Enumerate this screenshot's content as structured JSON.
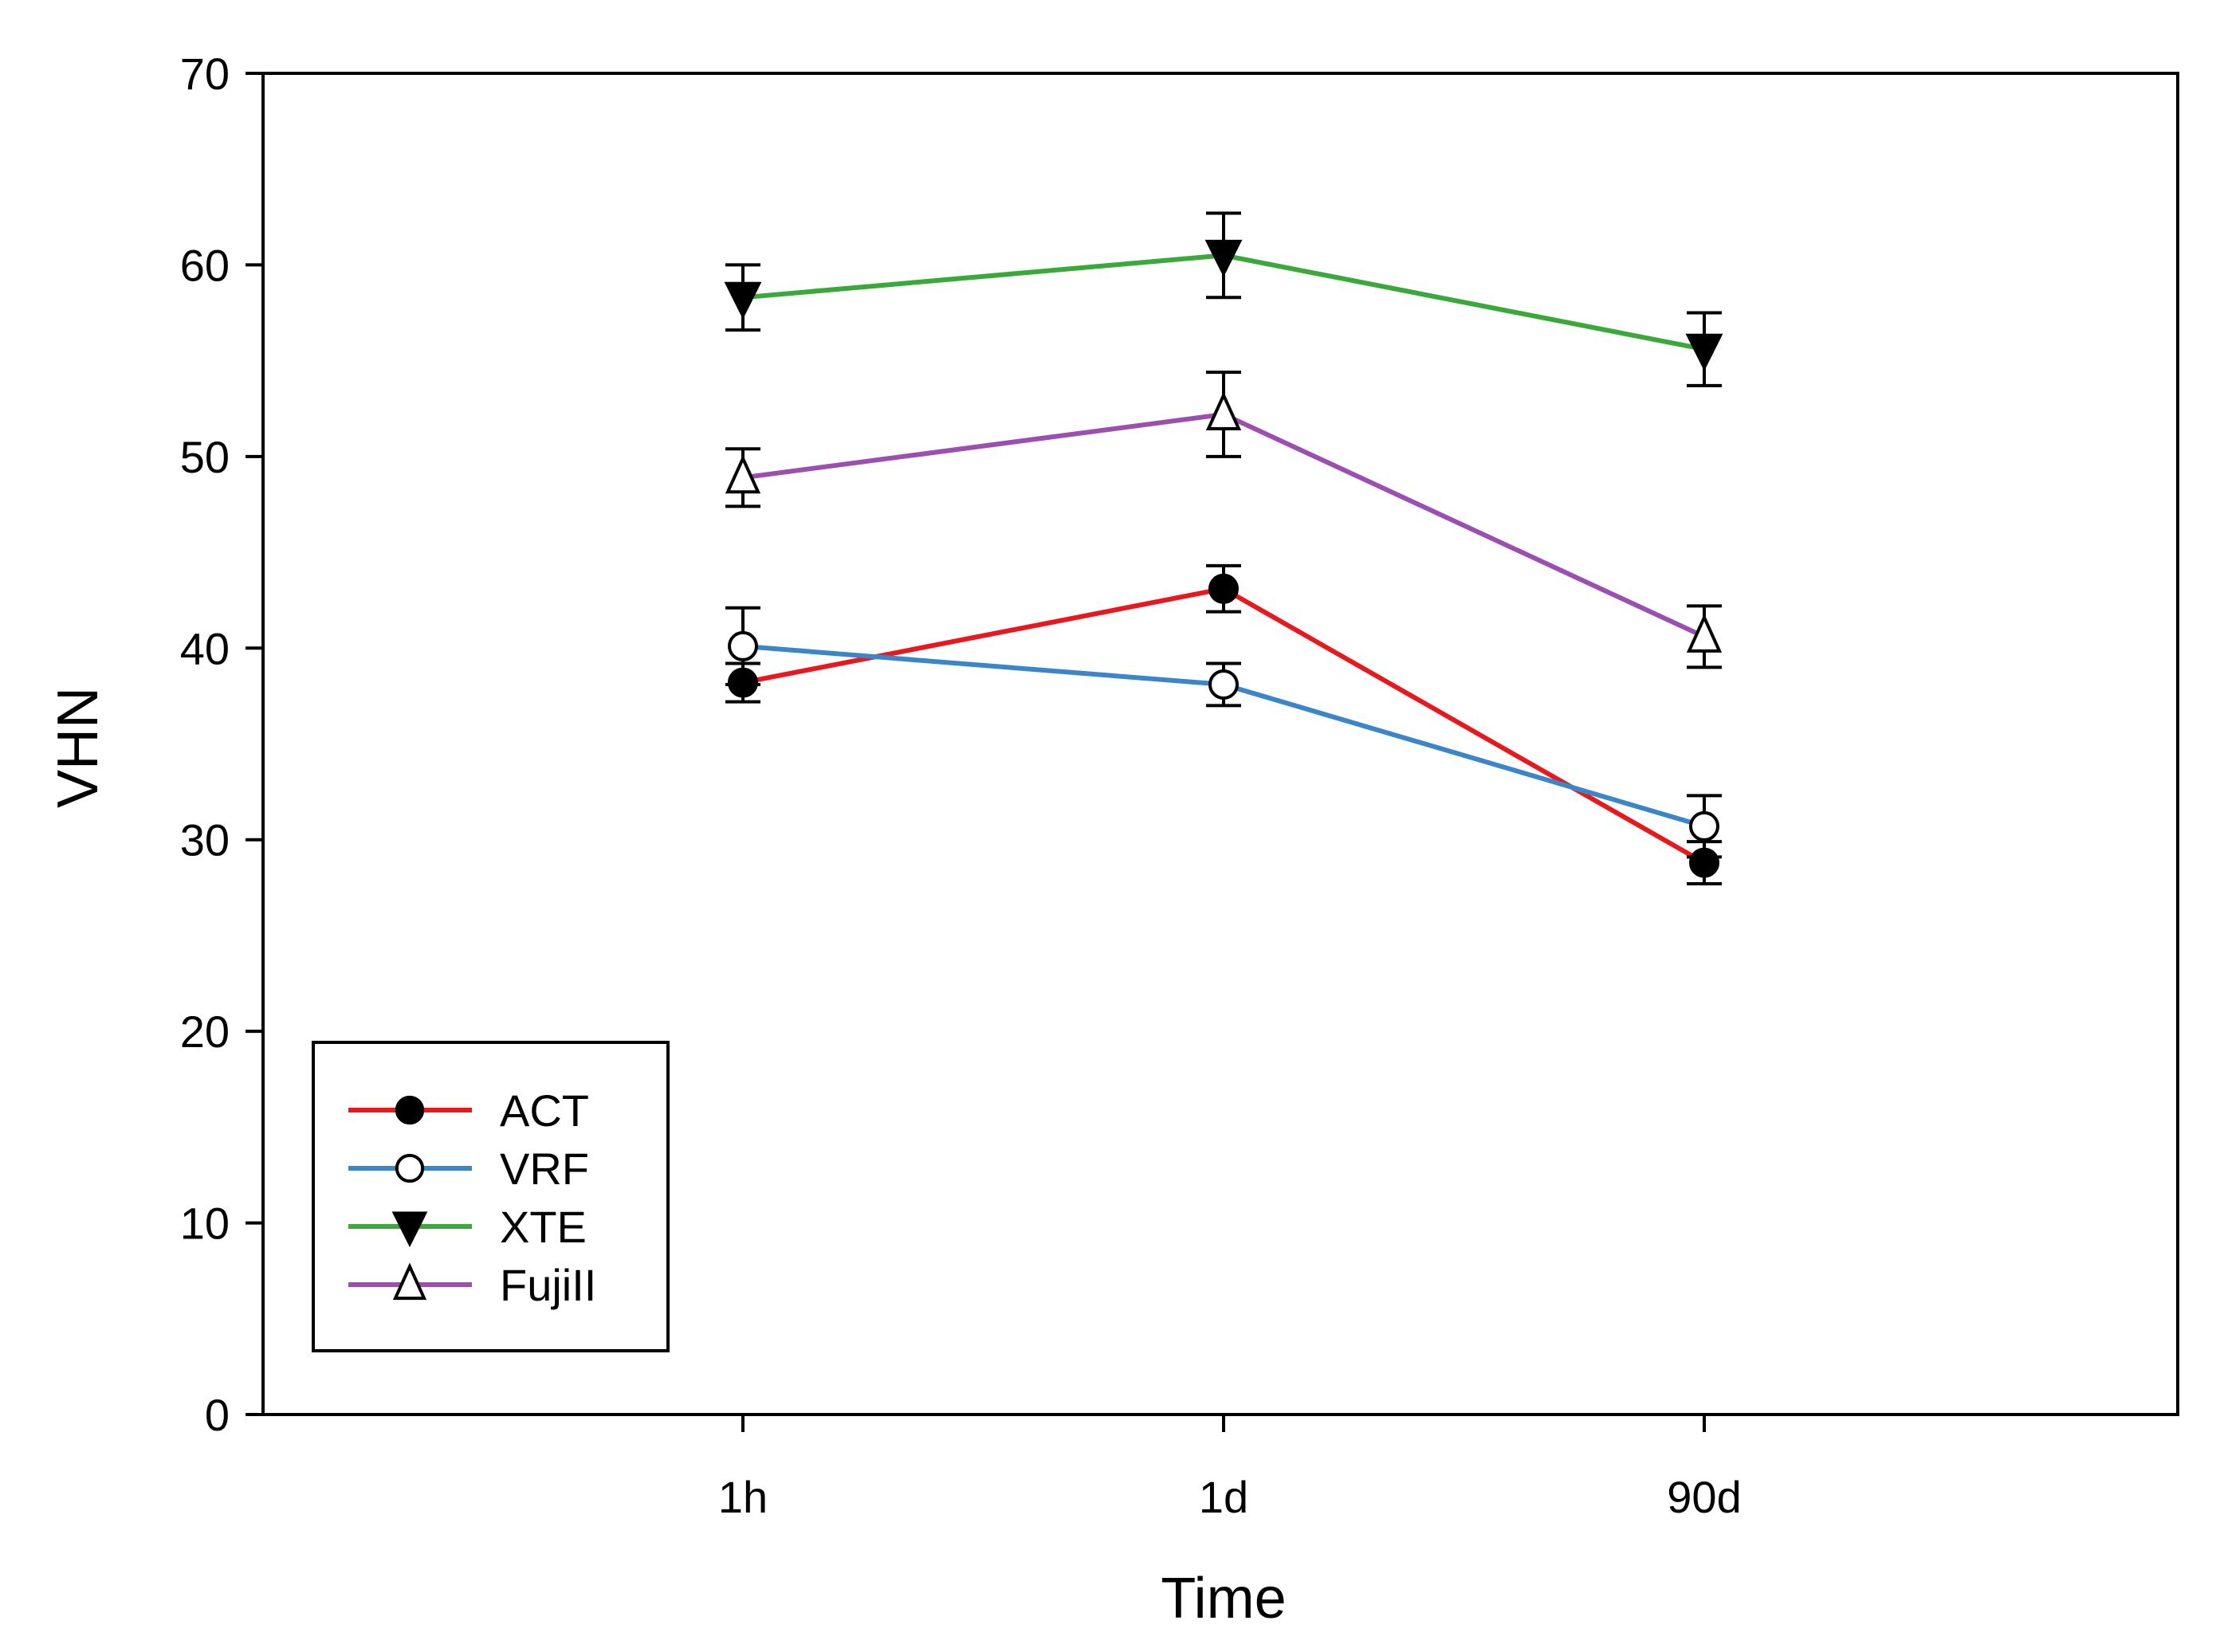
{
  "chart_data": {
    "type": "line",
    "title": "",
    "xlabel": "Time",
    "ylabel": "VHN",
    "categories": [
      "1h",
      "1d",
      "90d"
    ],
    "ylim": [
      0,
      70
    ],
    "yticks": [
      0,
      10,
      20,
      30,
      40,
      50,
      60,
      70
    ],
    "grid": false,
    "legend_position": "bottom-left",
    "series": [
      {
        "name": "ACT",
        "color": "#e8191e",
        "marker": "filled-circle",
        "values": [
          38.2,
          43.1,
          28.8
        ],
        "errors": [
          1.0,
          1.2,
          1.1
        ]
      },
      {
        "name": "VRF",
        "color": "#3a86c8",
        "marker": "open-circle",
        "values": [
          40.1,
          38.1,
          30.7
        ],
        "errors": [
          2.0,
          1.1,
          1.6
        ]
      },
      {
        "name": "XTE",
        "color": "#3aa93a",
        "marker": "filled-triangle-down",
        "values": [
          58.3,
          60.5,
          55.6
        ],
        "errors": [
          1.7,
          2.2,
          1.9
        ]
      },
      {
        "name": "FujiII",
        "color": "#9b4fb0",
        "marker": "open-triangle-up",
        "values": [
          48.9,
          52.2,
          40.6
        ],
        "errors": [
          1.5,
          2.2,
          1.6
        ]
      }
    ]
  }
}
